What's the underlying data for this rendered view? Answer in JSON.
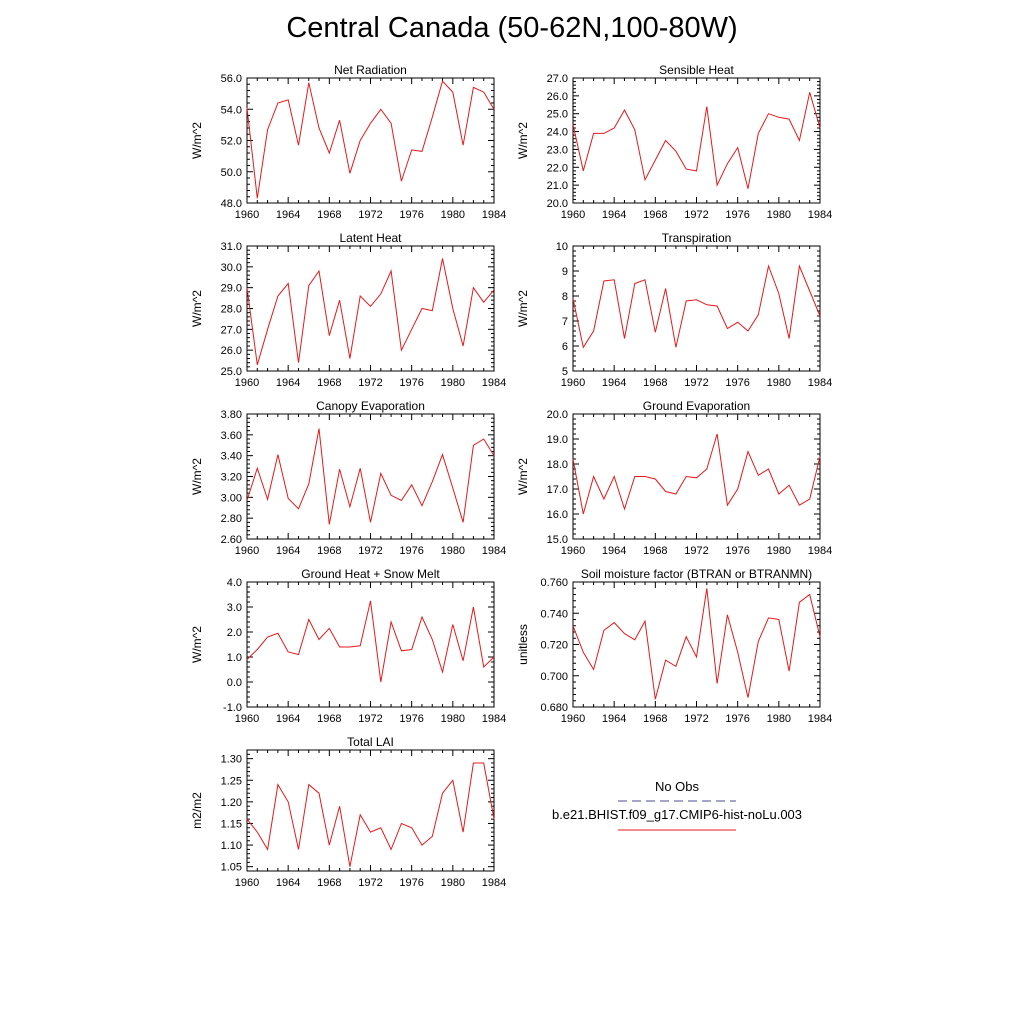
{
  "title": "Central Canada (50-62N,100-80W)",
  "colors": {
    "model": "#e41a1c",
    "obs": "#4b4b8f",
    "axis": "#000000"
  },
  "legend": {
    "obs_label": "No Obs",
    "model_label": "b.e21.BHIST.f09_g17.CMIP6-hist-noLu.003"
  },
  "chart_data": [
    {
      "type": "line",
      "title": "Net Radiation",
      "ylabel": "W/m^2",
      "ylim": [
        48.0,
        56.0
      ],
      "yticks": [
        48.0,
        50.0,
        52.0,
        54.0,
        56.0
      ],
      "ytick_labels": [
        "48.0",
        "50.0",
        "52.0",
        "54.0",
        "56.0"
      ],
      "xlim": [
        1960,
        1984
      ],
      "xticks": [
        1960,
        1964,
        1968,
        1972,
        1976,
        1980,
        1984
      ],
      "xtick_labels": [
        "1960",
        "1964",
        "1968",
        "1972",
        "1976",
        "1980",
        "1984"
      ],
      "series": [
        {
          "values": [
            54.1,
            48.3,
            52.7,
            54.4,
            54.6,
            51.7,
            55.7,
            52.8,
            51.2,
            53.3,
            49.9,
            52.0,
            53.1,
            54.0,
            53.1,
            49.4,
            51.4,
            51.3,
            53.5,
            55.8,
            55.1,
            51.7,
            55.4,
            55.1,
            54.0
          ]
        }
      ]
    },
    {
      "type": "line",
      "title": "Sensible Heat",
      "ylabel": "W/m^2",
      "ylim": [
        20.0,
        27.0
      ],
      "yticks": [
        20.0,
        21.0,
        22.0,
        23.0,
        24.0,
        25.0,
        26.0,
        27.0
      ],
      "ytick_labels": [
        "20.0",
        "21.0",
        "22.0",
        "23.0",
        "24.0",
        "25.0",
        "26.0",
        "27.0"
      ],
      "xlim": [
        1960,
        1984
      ],
      "xticks": [
        1960,
        1964,
        1968,
        1972,
        1976,
        1980,
        1984
      ],
      "xtick_labels": [
        "1960",
        "1964",
        "1968",
        "1972",
        "1976",
        "1980",
        "1984"
      ],
      "series": [
        {
          "values": [
            24.4,
            21.8,
            23.9,
            23.9,
            24.2,
            25.2,
            24.1,
            21.3,
            22.4,
            23.5,
            22.9,
            21.9,
            21.8,
            25.4,
            21.0,
            22.2,
            23.1,
            20.8,
            23.9,
            25.0,
            24.8,
            24.7,
            23.5,
            26.2,
            24.2
          ]
        }
      ]
    },
    {
      "type": "line",
      "title": "Latent Heat",
      "ylabel": "W/m^2",
      "ylim": [
        25.0,
        31.0
      ],
      "yticks": [
        25.0,
        26.0,
        27.0,
        28.0,
        29.0,
        30.0,
        31.0
      ],
      "ytick_labels": [
        "25.0",
        "26.0",
        "27.0",
        "28.0",
        "29.0",
        "30.0",
        "31.0"
      ],
      "xlim": [
        1960,
        1984
      ],
      "xticks": [
        1960,
        1964,
        1968,
        1972,
        1976,
        1980,
        1984
      ],
      "xtick_labels": [
        "1960",
        "1964",
        "1968",
        "1972",
        "1976",
        "1980",
        "1984"
      ],
      "series": [
        {
          "values": [
            29.0,
            25.3,
            27.0,
            28.6,
            29.2,
            25.4,
            29.1,
            29.8,
            26.7,
            28.4,
            25.6,
            28.6,
            28.1,
            28.7,
            29.8,
            26.0,
            27.0,
            28.0,
            27.9,
            30.4,
            28.0,
            26.2,
            29.0,
            28.3,
            28.9
          ]
        }
      ]
    },
    {
      "type": "line",
      "title": "Transpiration",
      "ylabel": "W/m^2",
      "ylim": [
        5,
        10
      ],
      "yticks": [
        5,
        6,
        7,
        8,
        9,
        10
      ],
      "ytick_labels": [
        "5",
        "6",
        "7",
        "8",
        "9",
        "10"
      ],
      "xlim": [
        1960,
        1984
      ],
      "xticks": [
        1960,
        1964,
        1968,
        1972,
        1976,
        1980,
        1984
      ],
      "xtick_labels": [
        "1960",
        "1964",
        "1968",
        "1972",
        "1976",
        "1980",
        "1984"
      ],
      "series": [
        {
          "values": [
            7.9,
            5.95,
            6.6,
            8.6,
            8.65,
            6.3,
            8.5,
            8.65,
            6.55,
            8.3,
            5.95,
            7.8,
            7.85,
            7.65,
            7.6,
            6.7,
            6.95,
            6.6,
            7.25,
            9.2,
            8.1,
            6.3,
            9.2,
            8.2,
            7.2
          ]
        }
      ]
    },
    {
      "type": "line",
      "title": "Canopy Evaporation",
      "ylabel": "W/m^2",
      "ylim": [
        2.6,
        3.8
      ],
      "yticks": [
        2.6,
        2.8,
        3.0,
        3.2,
        3.4,
        3.6,
        3.8
      ],
      "ytick_labels": [
        "2.60",
        "2.80",
        "3.00",
        "3.20",
        "3.40",
        "3.60",
        "3.80"
      ],
      "xlim": [
        1960,
        1984
      ],
      "xticks": [
        1960,
        1964,
        1968,
        1972,
        1976,
        1980,
        1984
      ],
      "xtick_labels": [
        "1960",
        "1964",
        "1968",
        "1972",
        "1976",
        "1980",
        "1984"
      ],
      "series": [
        {
          "values": [
            2.97,
            3.28,
            2.98,
            3.41,
            2.99,
            2.89,
            3.13,
            3.66,
            2.74,
            3.27,
            2.91,
            3.28,
            2.76,
            3.23,
            3.02,
            2.97,
            3.12,
            2.92,
            3.15,
            3.41,
            3.09,
            2.76,
            3.5,
            3.56,
            3.4
          ]
        }
      ]
    },
    {
      "type": "line",
      "title": "Ground Evaporation",
      "ylabel": "W/m^2",
      "ylim": [
        15.0,
        20.0
      ],
      "yticks": [
        15.0,
        16.0,
        17.0,
        18.0,
        19.0,
        20.0
      ],
      "ytick_labels": [
        "15.0",
        "16.0",
        "17.0",
        "18.0",
        "19.0",
        "20.0"
      ],
      "xlim": [
        1960,
        1984
      ],
      "xticks": [
        1960,
        1964,
        1968,
        1972,
        1976,
        1980,
        1984
      ],
      "xtick_labels": [
        "1960",
        "1964",
        "1968",
        "1972",
        "1976",
        "1980",
        "1984"
      ],
      "series": [
        {
          "values": [
            18.2,
            16.0,
            17.5,
            16.6,
            17.5,
            16.2,
            17.5,
            17.5,
            17.4,
            16.9,
            16.8,
            17.5,
            17.45,
            17.8,
            19.2,
            16.35,
            17.0,
            18.5,
            17.55,
            17.8,
            16.8,
            17.15,
            16.35,
            16.6,
            18.3
          ]
        }
      ]
    },
    {
      "type": "line",
      "title": "Ground Heat + Snow Melt",
      "ylabel": "W/m^2",
      "ylim": [
        -1.0,
        4.0
      ],
      "yticks": [
        -1.0,
        0.0,
        1.0,
        2.0,
        3.0,
        4.0
      ],
      "ytick_labels": [
        "-1.0",
        "0.0",
        "1.0",
        "2.0",
        "3.0",
        "4.0"
      ],
      "xlim": [
        1960,
        1984
      ],
      "xticks": [
        1960,
        1964,
        1968,
        1972,
        1976,
        1980,
        1984
      ],
      "xtick_labels": [
        "1960",
        "1964",
        "1968",
        "1972",
        "1976",
        "1980",
        "1984"
      ],
      "series": [
        {
          "values": [
            0.9,
            1.3,
            1.8,
            1.95,
            1.2,
            1.1,
            2.5,
            1.7,
            2.15,
            1.4,
            1.4,
            1.45,
            3.25,
            0.0,
            2.4,
            1.25,
            1.3,
            2.6,
            1.7,
            0.4,
            2.3,
            0.85,
            3.0,
            0.6,
            1.0
          ]
        }
      ]
    },
    {
      "type": "line",
      "title": "Soil moisture factor (BTRAN or BTRANMN)",
      "ylabel": "unitless",
      "ylim": [
        0.68,
        0.76
      ],
      "yticks": [
        0.68,
        0.7,
        0.72,
        0.74,
        0.76
      ],
      "ytick_labels": [
        "0.680",
        "0.700",
        "0.720",
        "0.740",
        "0.760"
      ],
      "xlim": [
        1960,
        1984
      ],
      "xticks": [
        1960,
        1964,
        1968,
        1972,
        1976,
        1980,
        1984
      ],
      "xtick_labels": [
        "1960",
        "1964",
        "1968",
        "1972",
        "1976",
        "1980",
        "1984"
      ],
      "series": [
        {
          "values": [
            0.732,
            0.715,
            0.704,
            0.729,
            0.734,
            0.727,
            0.723,
            0.735,
            0.685,
            0.71,
            0.706,
            0.725,
            0.712,
            0.756,
            0.695,
            0.739,
            0.715,
            0.686,
            0.722,
            0.737,
            0.736,
            0.703,
            0.747,
            0.752,
            0.725
          ]
        }
      ]
    },
    {
      "type": "line",
      "title": "Total LAI",
      "ylabel": "m2/m2",
      "ylim": [
        1.04,
        1.32
      ],
      "yticks": [
        1.05,
        1.1,
        1.15,
        1.2,
        1.25,
        1.3
      ],
      "ytick_labels": [
        "1.05",
        "1.10",
        "1.15",
        "1.20",
        "1.25",
        "1.30"
      ],
      "xlim": [
        1960,
        1984
      ],
      "xticks": [
        1960,
        1964,
        1968,
        1972,
        1976,
        1980,
        1984
      ],
      "xtick_labels": [
        "1960",
        "1964",
        "1968",
        "1972",
        "1976",
        "1980",
        "1984"
      ],
      "series": [
        {
          "values": [
            1.16,
            1.13,
            1.09,
            1.24,
            1.2,
            1.09,
            1.24,
            1.22,
            1.1,
            1.19,
            1.05,
            1.17,
            1.13,
            1.14,
            1.09,
            1.15,
            1.14,
            1.1,
            1.12,
            1.22,
            1.25,
            1.13,
            1.29,
            1.29,
            1.16
          ]
        }
      ]
    }
  ]
}
